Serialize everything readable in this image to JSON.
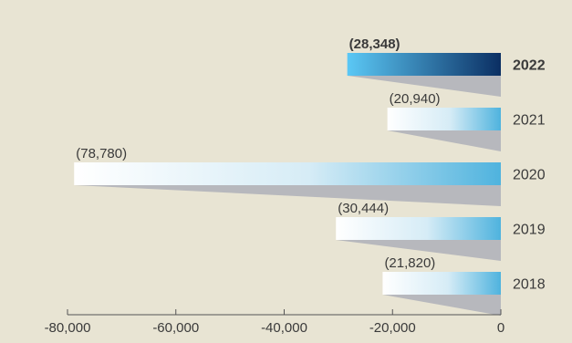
{
  "chart_data": {
    "type": "bar",
    "orientation": "horizontal",
    "categories": [
      "2022",
      "2021",
      "2020",
      "2019",
      "2018"
    ],
    "values": [
      -28348,
      -20940,
      -78780,
      -30444,
      -21820
    ],
    "data_labels": [
      "(28,348)",
      "(20,940)",
      "(78,780)",
      "(30,444)",
      "(21,820)"
    ],
    "highlight_index": 0,
    "title": "",
    "xlabel": "",
    "ylabel": "",
    "xlim": [
      -80000,
      0
    ],
    "x_ticks": [
      -80000,
      -60000,
      -40000,
      -20000,
      0
    ],
    "x_tick_labels": [
      "-80,000",
      "-60,000",
      "-40,000",
      "-20,000",
      "0"
    ],
    "grid": false,
    "colors": {
      "background": "#e8e4d3",
      "bar_light_start": "#ffffff",
      "bar_light_end": "#4fb3de",
      "highlight_start": "#5bc8f5",
      "highlight_end": "#0b2f63",
      "shadow": "#b7b8bd",
      "axis": "#555555",
      "text": "#3a3a3a"
    }
  }
}
